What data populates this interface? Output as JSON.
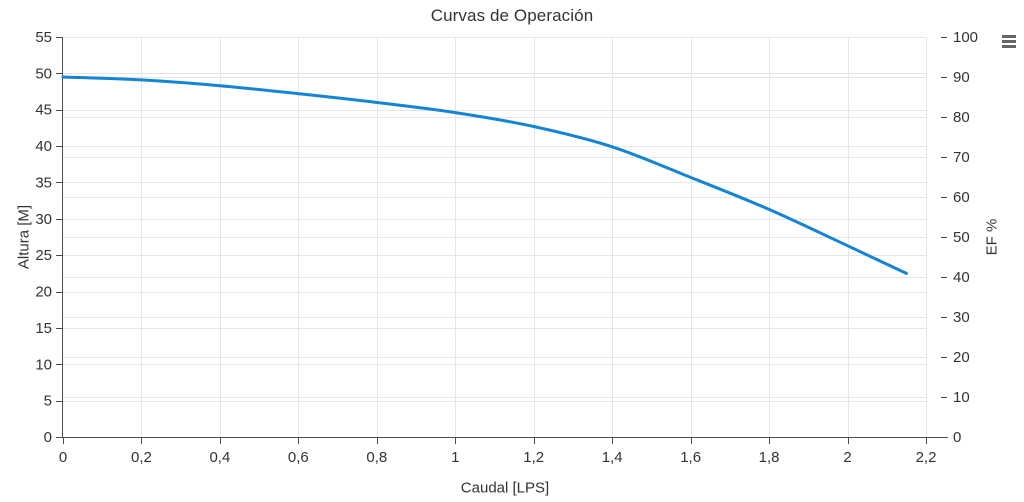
{
  "chart": {
    "export_menu_label": "Chart context menu"
  },
  "chart_data": {
    "type": "line",
    "title": "Curvas de Operación",
    "xlabel": "Caudal [LPS]",
    "ylabel_left": "Altura [M]",
    "ylabel_right": "EF %",
    "xlim": [
      0,
      2.2
    ],
    "grid": true,
    "legend": "none",
    "x_tick_values": [
      0,
      0.2,
      0.4,
      0.6,
      0.8,
      1.0,
      1.2,
      1.4,
      1.6,
      1.8,
      2.0,
      2.2
    ],
    "x_tick_labels": [
      "0",
      "0,2",
      "0,4",
      "0,6",
      "0,8",
      "1",
      "1,2",
      "1,4",
      "1,6",
      "1,8",
      "2",
      "2,2"
    ],
    "y_left": {
      "min": 0,
      "max": 55,
      "step": 5,
      "tick_labels": [
        "0",
        "5",
        "10",
        "15",
        "20",
        "25",
        "30",
        "35",
        "40",
        "45",
        "50",
        "55"
      ]
    },
    "y_right": {
      "min": 0,
      "max": 100,
      "step": 10,
      "tick_labels": [
        "0",
        "10",
        "20",
        "30",
        "40",
        "50",
        "60",
        "70",
        "80",
        "90",
        "100"
      ]
    },
    "series": [
      {
        "name": "Altura",
        "y_axis": "left",
        "color": "#1485d5",
        "line_width": 3,
        "points": [
          [
            0,
            49.5
          ],
          [
            0.2,
            49.1
          ],
          [
            0.4,
            48.3
          ],
          [
            0.6,
            47.2
          ],
          [
            0.8,
            46.0
          ],
          [
            1.0,
            44.6
          ],
          [
            1.2,
            42.7
          ],
          [
            1.4,
            39.9
          ],
          [
            1.6,
            35.7
          ],
          [
            1.8,
            31.3
          ],
          [
            2.0,
            26.3
          ],
          [
            2.15,
            22.5
          ]
        ]
      }
    ],
    "colors": {
      "grid": "#e6e6e6",
      "axis_line": "#4c4c4c",
      "tick": "#4c4c4c",
      "text": "#333333",
      "background": "#ffffff"
    }
  }
}
